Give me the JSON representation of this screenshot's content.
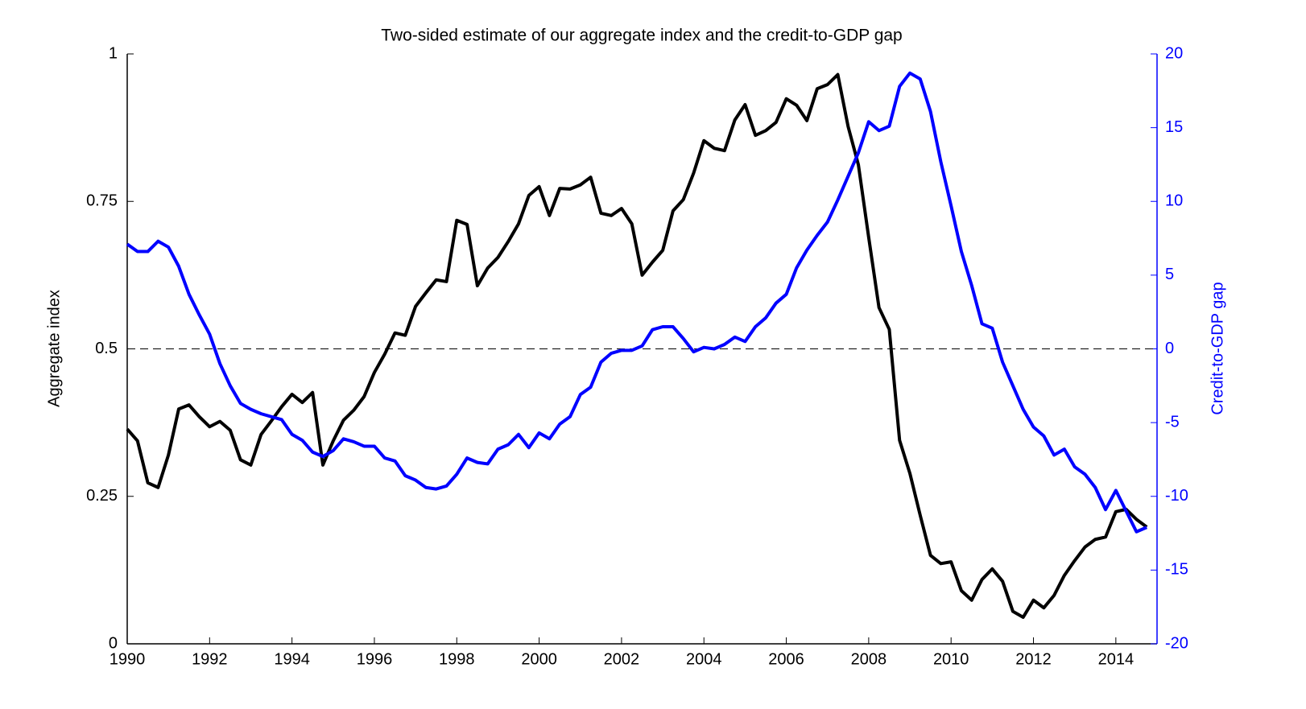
{
  "chart_data": {
    "type": "line",
    "title": "Two-sided estimate of our aggregate index and the credit-to-GDP gap",
    "ylabel": "Aggregate index",
    "y2label": "Credit-to-GDP gap",
    "xlim": [
      1990,
      2015
    ],
    "xticks": [
      1990,
      1992,
      1994,
      1996,
      1998,
      2000,
      2002,
      2004,
      2006,
      2008,
      2010,
      2012,
      2014
    ],
    "ylim": [
      0,
      1
    ],
    "yticks": [
      0,
      0.25,
      0.5,
      0.75,
      1
    ],
    "y2lim": [
      -20,
      20
    ],
    "y2ticks": [
      -20,
      -15,
      -10,
      -5,
      0,
      5,
      10,
      15,
      20
    ],
    "reference_line": 0.5,
    "x": [
      1990,
      1990.25,
      1990.5,
      1990.75,
      1991,
      1991.25,
      1991.5,
      1991.75,
      1992,
      1992.25,
      1992.5,
      1992.75,
      1993,
      1993.25,
      1993.5,
      1993.75,
      1994,
      1994.25,
      1994.5,
      1994.75,
      1995,
      1995.25,
      1995.5,
      1995.75,
      1996,
      1996.25,
      1996.5,
      1996.75,
      1997,
      1997.25,
      1997.5,
      1997.75,
      1998,
      1998.25,
      1998.5,
      1998.75,
      1999,
      1999.25,
      1999.5,
      1999.75,
      2000,
      2000.25,
      2000.5,
      2000.75,
      2001,
      2001.25,
      2001.5,
      2001.75,
      2002,
      2002.25,
      2002.5,
      2002.75,
      2003,
      2003.25,
      2003.5,
      2003.75,
      2004,
      2004.25,
      2004.5,
      2004.75,
      2005,
      2005.25,
      2005.5,
      2005.75,
      2006,
      2006.25,
      2006.5,
      2006.75,
      2007,
      2007.25,
      2007.5,
      2007.75,
      2008,
      2008.25,
      2008.5,
      2008.75,
      2009,
      2009.25,
      2009.5,
      2009.75,
      2010,
      2010.25,
      2010.5,
      2010.75,
      2011,
      2011.25,
      2011.5,
      2011.75,
      2012,
      2012.25,
      2012.5,
      2012.75,
      2013,
      2013.25,
      2013.5,
      2013.75,
      2014,
      2014.25,
      2014.5,
      2014.75
    ],
    "series": [
      {
        "name": "Aggregate index",
        "color": "#000000",
        "values": [
          0.364,
          0.344,
          0.273,
          0.265,
          0.32,
          0.398,
          0.405,
          0.385,
          0.368,
          0.377,
          0.362,
          0.312,
          0.303,
          0.355,
          0.378,
          0.402,
          0.423,
          0.409,
          0.426,
          0.303,
          0.344,
          0.379,
          0.396,
          0.419,
          0.46,
          0.491,
          0.527,
          0.523,
          0.572,
          0.595,
          0.617,
          0.614,
          0.718,
          0.711,
          0.607,
          0.637,
          0.655,
          0.682,
          0.712,
          0.76,
          0.775,
          0.726,
          0.772,
          0.771,
          0.778,
          0.791,
          0.73,
          0.726,
          0.738,
          0.712,
          0.625,
          0.647,
          0.667,
          0.734,
          0.753,
          0.798,
          0.853,
          0.84,
          0.836,
          0.888,
          0.914,
          0.862,
          0.87,
          0.884,
          0.924,
          0.913,
          0.887,
          0.941,
          0.948,
          0.965,
          0.877,
          0.812,
          0.689,
          0.57,
          0.533,
          0.345,
          0.289,
          0.218,
          0.15,
          0.136,
          0.139,
          0.09,
          0.074,
          0.109,
          0.127,
          0.106,
          0.055,
          0.045,
          0.074,
          0.061,
          0.082,
          0.116,
          0.141,
          0.164,
          0.177,
          0.181,
          0.224,
          0.228,
          0.211,
          0.198
        ]
      },
      {
        "name": "Credit-to-GDP gap",
        "color": "#0000ff",
        "axis": "y2",
        "values": [
          7.1,
          6.6,
          6.6,
          7.3,
          6.9,
          5.6,
          3.7,
          2.3,
          1.0,
          -1.0,
          -2.5,
          -3.7,
          -4.1,
          -4.4,
          -4.6,
          -4.8,
          -5.8,
          -6.2,
          -7.0,
          -7.3,
          -6.9,
          -6.1,
          -6.3,
          -6.6,
          -6.6,
          -7.4,
          -7.6,
          -8.6,
          -8.9,
          -9.4,
          -9.5,
          -9.3,
          -8.5,
          -7.4,
          -7.7,
          -7.8,
          -6.8,
          -6.5,
          -5.8,
          -6.7,
          -5.7,
          -6.1,
          -5.1,
          -4.6,
          -3.1,
          -2.6,
          -0.9,
          -0.3,
          -0.1,
          -0.1,
          0.2,
          1.3,
          1.5,
          1.5,
          0.7,
          -0.2,
          0.1,
          0.0,
          0.3,
          0.8,
          0.5,
          1.5,
          2.1,
          3.1,
          3.7,
          5.5,
          6.7,
          7.7,
          8.6,
          10.1,
          11.7,
          13.3,
          15.4,
          14.8,
          15.1,
          17.8,
          18.7,
          18.3,
          16.1,
          12.7,
          9.7,
          6.6,
          4.3,
          1.7,
          1.4,
          -0.9,
          -2.5,
          -4.1,
          -5.3,
          -5.9,
          -7.2,
          -6.8,
          -8.0,
          -8.5,
          -9.4,
          -10.9,
          -9.6,
          -11.0,
          -12.4,
          -12.1
        ]
      }
    ]
  }
}
